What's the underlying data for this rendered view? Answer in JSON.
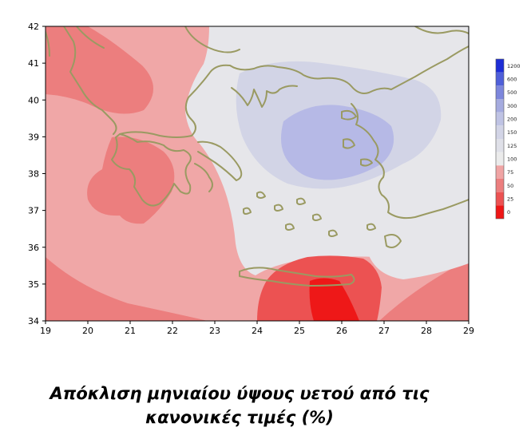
{
  "map": {
    "x_axis": {
      "ticks": [
        "19",
        "20",
        "21",
        "22",
        "23",
        "24",
        "25",
        "26",
        "27",
        "28",
        "29"
      ]
    },
    "y_axis": {
      "ticks": [
        "34",
        "35",
        "36",
        "37",
        "38",
        "39",
        "40",
        "41",
        "42"
      ]
    },
    "legend": {
      "levels": [
        "1200",
        "600",
        "500",
        "300",
        "200",
        "150",
        "125",
        "100",
        "75",
        "50",
        "25",
        "0"
      ],
      "colors": [
        "#1e2ed6",
        "#4f5fd9",
        "#7c86dc",
        "#a5abdf",
        "#bfc3e4",
        "#d2d4e6",
        "#dfe0e8",
        "#ebebeb",
        "#f0a4a4",
        "#ec7e7e",
        "#ec5252",
        "#ee1616"
      ]
    },
    "fill_colors": {
      "background": "#f0a7a7",
      "pink_dark": "#ec7e7e",
      "red": "#ec5252",
      "red_deep": "#ee1818",
      "gray": "#e6e6ea",
      "lavender": "#d2d4e6",
      "blue_light": "#b6b9e6",
      "coast": "#9a9a62"
    }
  },
  "caption": {
    "line1": "Απόκλιση μηνιαίου ύψους υετού από τις",
    "line2": "κανονικές τιμές (%)"
  }
}
